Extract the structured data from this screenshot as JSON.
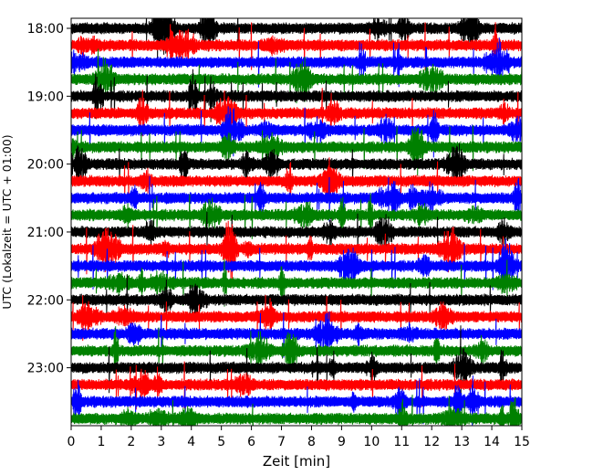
{
  "chart_data": {
    "type": "line",
    "title": "",
    "xlabel": "Zeit  [min]",
    "ylabel": "UTC (Lokalzeit = UTC + 01:00)",
    "xlim": [
      0,
      15
    ],
    "x_ticks": [
      "0",
      "1",
      "2",
      "3",
      "4",
      "5",
      "6",
      "7",
      "8",
      "9",
      "10",
      "11",
      "12",
      "13",
      "14",
      "15"
    ],
    "y_ticks": [
      "18:00",
      "19:00",
      "20:00",
      "21:00",
      "22:00",
      "23:00"
    ],
    "start_time": "18:00",
    "end_time": "24:00",
    "trace_interval_minutes": 15,
    "trace_count": 24,
    "colors": [
      "#000000",
      "#ff0000",
      "#0000ff",
      "#008000"
    ],
    "grid": false
  }
}
